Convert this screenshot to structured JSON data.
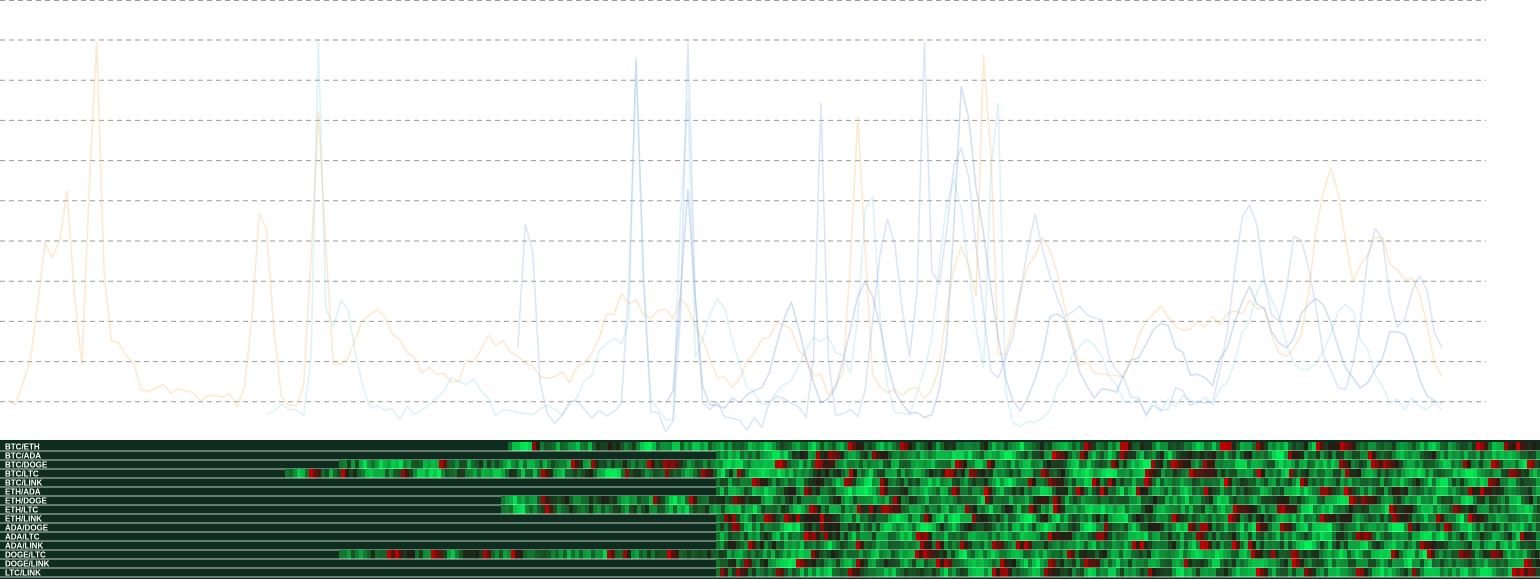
{
  "chart_data": [
    {
      "type": "line",
      "title": "",
      "xlabel": "",
      "ylabel": "",
      "grid": true,
      "legend": "none",
      "x_range": [
        0,
        100
      ],
      "y_range": [
        0,
        100
      ],
      "gridline_values": [
        10,
        20,
        30,
        40,
        50,
        60,
        70,
        80,
        90,
        100
      ],
      "x_step": 0.5,
      "series": [
        {
          "color": "#f9c78a",
          "opacity": 0.4,
          "start_x": 0,
          "end_x": 97,
          "base_level": 12,
          "noise_amp": 3.5,
          "seed": 11,
          "peaks": [
            [
              2.6,
              40,
              0.9
            ],
            [
              4.0,
              48,
              0.6
            ],
            [
              5.9,
              95,
              0.5
            ],
            [
              7.2,
              12,
              1.5
            ],
            [
              17.2,
              50,
              0.8
            ],
            [
              21.0,
              68,
              0.6
            ],
            [
              25.0,
              18,
              2.5
            ],
            [
              33,
              12,
              3
            ],
            [
              42,
              20,
              3
            ],
            [
              46,
              20,
              2
            ],
            [
              52,
              18,
              2
            ],
            [
              57.5,
              66,
              0.6
            ],
            [
              64.5,
              35,
              1.2
            ],
            [
              66.2,
              95,
              0.4
            ],
            [
              70,
              35,
              2
            ],
            [
              78,
              20,
              2
            ],
            [
              82,
              20,
              2
            ],
            [
              84.5,
              18,
              1.5
            ],
            [
              88.5,
              18,
              2
            ],
            [
              89.5,
              42,
              1.2
            ],
            [
              92.5,
              35,
              1.5
            ],
            [
              95,
              24,
              1.5
            ]
          ]
        },
        {
          "color": "#9fdde9",
          "opacity": 0.35,
          "start_x": 17.5,
          "end_x": 97,
          "base_level": 8,
          "noise_amp": 3,
          "seed": 23,
          "peaks": [
            [
              21.0,
              100,
              0.35
            ],
            [
              22.5,
              30,
              1.2
            ],
            [
              31,
              10,
              2
            ],
            [
              41,
              18,
              2
            ],
            [
              42.6,
              85,
              0.4
            ],
            [
              45.8,
              100,
              0.35
            ],
            [
              48,
              28,
              1.5
            ],
            [
              55,
              20,
              2
            ],
            [
              58.3,
              55,
              0.8
            ],
            [
              64,
              55,
              1.5
            ],
            [
              66.8,
              100,
              0.4
            ],
            [
              73,
              20,
              2
            ],
            [
              85,
              30,
              2
            ],
            [
              90.5,
              28,
              2
            ]
          ]
        },
        {
          "color": "#9fb8ea",
          "opacity": 0.35,
          "start_x": 34.5,
          "end_x": 97,
          "base_level": 10,
          "noise_amp": 5,
          "seed": 37,
          "peaks": [
            [
              35.2,
              55,
              0.6
            ],
            [
              42.5,
              90,
              0.5
            ],
            [
              46,
              95,
              0.45
            ],
            [
              55.0,
              80,
              0.4
            ],
            [
              59.5,
              45,
              1.2
            ],
            [
              62.0,
              100,
              0.4
            ],
            [
              64.5,
              60,
              1.5
            ],
            [
              69.5,
              45,
              1.5
            ],
            [
              73,
              25,
              2
            ],
            [
              84,
              48,
              1.5
            ],
            [
              87.5,
              40,
              1.2
            ],
            [
              92.5,
              45,
              1.2
            ],
            [
              95.5,
              30,
              1.5
            ]
          ]
        },
        {
          "color": "#7fa6d6",
          "opacity": 0.35,
          "start_x": 44.5,
          "end_x": 97,
          "base_level": 9,
          "noise_amp": 3,
          "seed": 51,
          "peaks": [
            [
              46,
              55,
              0.6
            ],
            [
              53,
              25,
              1.2
            ],
            [
              58,
              30,
              1.5
            ],
            [
              64.5,
              50,
              0.7
            ],
            [
              65.5,
              45,
              1.5
            ],
            [
              71,
              22,
              1.5
            ],
            [
              78,
              18,
              2
            ],
            [
              84,
              28,
              2
            ],
            [
              88.5,
              25,
              2
            ],
            [
              94,
              20,
              1.5
            ]
          ]
        }
      ]
    },
    {
      "type": "heatmap",
      "rows": [
        "BTC/ETH",
        "BTC/ADA",
        "BTC/DOGE",
        "BTC/LTC",
        "BTC/LINK",
        "ETH/ADA",
        "ETH/DOGE",
        "ETH/LTC",
        "ETH/LINK",
        "ADA/DOGE",
        "ADA/LTC",
        "ADA/LINK",
        "DOGE/LTC",
        "DOGE/LINK",
        "LTC/LINK"
      ],
      "row_start_fraction": [
        0.33,
        0.465,
        0.22,
        0.185,
        0.465,
        0.465,
        0.325,
        0.325,
        0.465,
        0.465,
        0.465,
        0.465,
        0.22,
        0.465,
        0.465
      ],
      "value_range": [
        -1,
        1
      ],
      "colors": {
        "empty": "#0f2d1e",
        "negative": "#c80000",
        "neutral": "#1e1e14",
        "positive": "#00ee55",
        "divider": "#ffffff"
      }
    }
  ]
}
